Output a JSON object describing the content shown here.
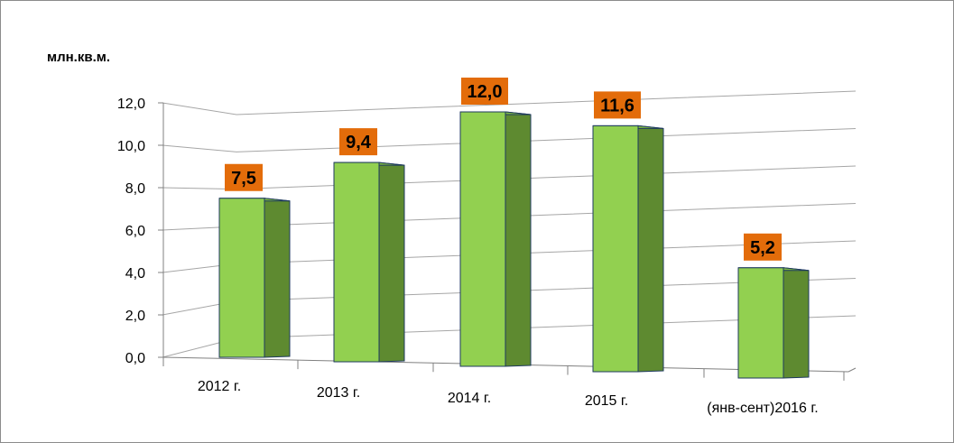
{
  "chart_data": {
    "type": "bar",
    "unit_label": "млн.кв.м.",
    "categories": [
      "2012 г.",
      "2013 г.",
      "2014 г.",
      "2015 г.",
      "(янв-сент)2016 г."
    ],
    "values": [
      7.5,
      9.4,
      12.0,
      11.6,
      5.2
    ],
    "value_labels": [
      "7,5",
      "9,4",
      "12,0",
      "11,6",
      "5,2"
    ],
    "y_ticks": [
      "0,0",
      "2,0",
      "4,0",
      "6,0",
      "8,0",
      "10,0",
      "12,0"
    ],
    "ylim": [
      0,
      12
    ],
    "grid": true,
    "legend": "none",
    "colors": {
      "bar_front": "#92D050",
      "bar_side": "#5E8A30",
      "bar_outline": "#1F3A5F",
      "label_bg": "#E36C0A",
      "grid": "#A6A6A6"
    }
  }
}
